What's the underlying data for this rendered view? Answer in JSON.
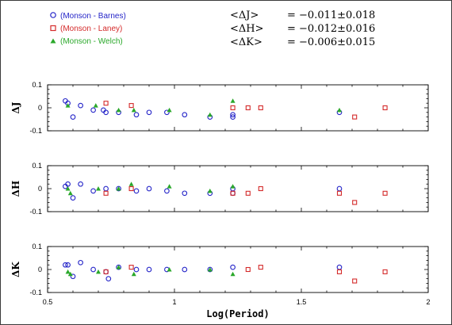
{
  "chart_data": {
    "type": "scatter",
    "xlabel": "Log(Period)",
    "xlim": [
      0.5,
      2.0
    ],
    "x_ticks": [
      "0.5",
      "1",
      "1.5",
      "2"
    ],
    "y_ticks": [
      "0.1",
      "0",
      "-0.1"
    ],
    "ylim": [
      -0.1,
      0.1
    ],
    "legend_placement": "top-left",
    "series_legend": [
      {
        "name": "(Monson - Barnes)",
        "marker": "circle",
        "color": "#2424c8"
      },
      {
        "name": "(Monson - Laney)",
        "marker": "square",
        "color": "#d42a2a"
      },
      {
        "name": "(Monson - Welch)",
        "marker": "triangle",
        "color": "#2aa82a"
      }
    ],
    "stats": [
      {
        "label": "<ΔJ>",
        "value": "= −0.011±0.018"
      },
      {
        "label": "<ΔH>",
        "value": "= −0.012±0.016"
      },
      {
        "label": "<ΔK>",
        "value": "= −0.006±0.015"
      }
    ],
    "panels": [
      {
        "ylabel": "ΔJ",
        "series": {
          "barnes": [
            [
              0.57,
              0.03
            ],
            [
              0.58,
              0.02
            ],
            [
              0.6,
              -0.04
            ],
            [
              0.63,
              0.01
            ],
            [
              0.68,
              -0.01
            ],
            [
              0.72,
              -0.01
            ],
            [
              0.73,
              -0.02
            ],
            [
              0.78,
              -0.02
            ],
            [
              0.85,
              -0.03
            ],
            [
              0.9,
              -0.02
            ],
            [
              0.97,
              -0.02
            ],
            [
              1.04,
              -0.03
            ],
            [
              1.14,
              -0.04
            ],
            [
              1.23,
              -0.04
            ],
            [
              1.23,
              -0.03
            ],
            [
              1.65,
              -0.02
            ]
          ],
          "laney": [
            [
              0.73,
              0.02
            ],
            [
              0.83,
              0.01
            ],
            [
              1.23,
              0.0
            ],
            [
              1.29,
              0.0
            ],
            [
              1.34,
              0.0
            ],
            [
              1.71,
              -0.04
            ],
            [
              1.83,
              0.0
            ]
          ],
          "welch": [
            [
              0.58,
              0.01
            ],
            [
              0.69,
              0.01
            ],
            [
              0.78,
              -0.01
            ],
            [
              0.84,
              -0.01
            ],
            [
              0.98,
              -0.01
            ],
            [
              1.14,
              -0.03
            ],
            [
              1.23,
              0.03
            ],
            [
              1.65,
              -0.01
            ]
          ]
        }
      },
      {
        "ylabel": "ΔH",
        "series": {
          "barnes": [
            [
              0.57,
              0.01
            ],
            [
              0.58,
              0.02
            ],
            [
              0.6,
              -0.04
            ],
            [
              0.63,
              0.02
            ],
            [
              0.68,
              -0.01
            ],
            [
              0.73,
              0.0
            ],
            [
              0.78,
              0.0
            ],
            [
              0.85,
              -0.01
            ],
            [
              0.9,
              0.0
            ],
            [
              0.97,
              -0.01
            ],
            [
              1.04,
              -0.02
            ],
            [
              1.14,
              -0.02
            ],
            [
              1.23,
              0.0
            ],
            [
              1.23,
              -0.02
            ],
            [
              1.65,
              0.0
            ]
          ],
          "laney": [
            [
              0.73,
              -0.02
            ],
            [
              0.83,
              0.0
            ],
            [
              1.23,
              -0.02
            ],
            [
              1.29,
              -0.02
            ],
            [
              1.34,
              0.0
            ],
            [
              1.65,
              -0.02
            ],
            [
              1.71,
              -0.06
            ],
            [
              1.83,
              -0.02
            ]
          ],
          "welch": [
            [
              0.58,
              0.0
            ],
            [
              0.59,
              -0.02
            ],
            [
              0.7,
              0.0
            ],
            [
              0.78,
              0.0
            ],
            [
              0.83,
              0.02
            ],
            [
              0.98,
              0.01
            ],
            [
              1.14,
              -0.01
            ],
            [
              1.23,
              0.01
            ]
          ]
        }
      },
      {
        "ylabel": "ΔK",
        "series": {
          "barnes": [
            [
              0.57,
              0.02
            ],
            [
              0.58,
              0.02
            ],
            [
              0.6,
              -0.03
            ],
            [
              0.63,
              0.03
            ],
            [
              0.68,
              0.0
            ],
            [
              0.73,
              -0.01
            ],
            [
              0.74,
              -0.04
            ],
            [
              0.78,
              0.01
            ],
            [
              0.85,
              0.0
            ],
            [
              0.9,
              0.0
            ],
            [
              0.97,
              0.0
            ],
            [
              1.04,
              0.0
            ],
            [
              1.14,
              0.0
            ],
            [
              1.23,
              0.01
            ],
            [
              1.65,
              0.01
            ]
          ],
          "laney": [
            [
              0.73,
              -0.01
            ],
            [
              0.83,
              0.01
            ],
            [
              1.29,
              0.0
            ],
            [
              1.34,
              0.01
            ],
            [
              1.65,
              -0.01
            ],
            [
              1.71,
              -0.05
            ],
            [
              1.83,
              -0.01
            ]
          ],
          "welch": [
            [
              0.58,
              -0.01
            ],
            [
              0.59,
              -0.02
            ],
            [
              0.7,
              -0.01
            ],
            [
              0.78,
              0.01
            ],
            [
              0.84,
              -0.02
            ],
            [
              0.98,
              0.0
            ],
            [
              1.14,
              0.0
            ],
            [
              1.23,
              -0.02
            ]
          ]
        }
      }
    ]
  }
}
